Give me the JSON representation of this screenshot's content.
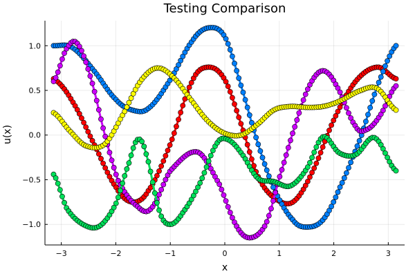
{
  "chart_data": {
    "type": "scatter",
    "title": "Testing Comparison",
    "xlabel": "x",
    "ylabel": "u(x)",
    "xlim": [
      -3.3,
      3.3
    ],
    "ylim": [
      -1.23,
      1.28
    ],
    "xticks": [
      -3,
      -2,
      -1,
      0,
      1,
      2,
      3
    ],
    "yticks": [
      -1.0,
      -0.5,
      0.0,
      0.5,
      1.0
    ],
    "xtick_labels": [
      "−3",
      "−2",
      "−1",
      "0",
      "1",
      "2",
      "3"
    ],
    "ytick_labels": [
      "−1.0",
      "−0.5",
      "0.0",
      "0.5",
      "1.0"
    ],
    "grid": true,
    "legend": "none",
    "x_range": [
      -3.14159,
      3.14159
    ],
    "n_points": 160,
    "series": [
      {
        "color": "#ff0000",
        "marker_edge": "#000000",
        "points": [
          [
            -3.14,
            0.63
          ],
          [
            -2.8,
            0.38
          ],
          [
            -2.4,
            -0.1
          ],
          [
            -2.0,
            -0.58
          ],
          [
            -1.7,
            -0.75
          ],
          [
            -1.4,
            -0.62
          ],
          [
            -1.0,
            -0.1
          ],
          [
            -0.6,
            0.6
          ],
          [
            -0.3,
            0.76
          ],
          [
            0.0,
            0.62
          ],
          [
            0.3,
            0.12
          ],
          [
            0.6,
            -0.45
          ],
          [
            0.9,
            -0.7
          ],
          [
            1.25,
            -0.75
          ],
          [
            1.6,
            -0.42
          ],
          [
            2.0,
            0.17
          ],
          [
            2.4,
            0.6
          ],
          [
            2.8,
            0.76
          ],
          [
            3.14,
            0.63
          ]
        ]
      },
      {
        "color": "#0080ff",
        "marker_edge": "#000000",
        "points": [
          [
            -3.14,
            1.0
          ],
          [
            -2.8,
            0.98
          ],
          [
            -2.4,
            0.72
          ],
          [
            -2.0,
            0.4
          ],
          [
            -1.7,
            0.28
          ],
          [
            -1.4,
            0.3
          ],
          [
            -1.0,
            0.62
          ],
          [
            -0.6,
            1.05
          ],
          [
            -0.3,
            1.2
          ],
          [
            0.0,
            1.1
          ],
          [
            0.3,
            0.55
          ],
          [
            0.6,
            -0.08
          ],
          [
            0.9,
            -0.6
          ],
          [
            1.25,
            -0.95
          ],
          [
            1.5,
            -1.03
          ],
          [
            1.8,
            -0.95
          ],
          [
            2.1,
            -0.6
          ],
          [
            2.5,
            -0.02
          ],
          [
            2.8,
            0.55
          ],
          [
            3.14,
            1.0
          ]
        ]
      },
      {
        "color": "#cc00ff",
        "marker_edge": "#000000",
        "points": [
          [
            -3.14,
            0.6
          ],
          [
            -2.9,
            0.97
          ],
          [
            -2.7,
            1.02
          ],
          [
            -2.45,
            0.62
          ],
          [
            -2.2,
            0.0
          ],
          [
            -1.95,
            -0.52
          ],
          [
            -1.6,
            -0.8
          ],
          [
            -1.35,
            -0.82
          ],
          [
            -1.0,
            -0.4
          ],
          [
            -0.5,
            -0.19
          ],
          [
            -0.1,
            -0.55
          ],
          [
            0.2,
            -1.0
          ],
          [
            0.45,
            -1.15
          ],
          [
            0.75,
            -1.0
          ],
          [
            1.0,
            -0.48
          ],
          [
            1.3,
            0.12
          ],
          [
            1.55,
            0.55
          ],
          [
            1.8,
            0.72
          ],
          [
            2.05,
            0.55
          ],
          [
            2.4,
            0.1
          ],
          [
            2.6,
            0.06
          ],
          [
            2.85,
            0.22
          ],
          [
            3.14,
            0.55
          ]
        ]
      },
      {
        "color": "#ffff00",
        "marker_edge": "#000000",
        "points": [
          [
            -3.14,
            0.25
          ],
          [
            -2.85,
            0.05
          ],
          [
            -2.55,
            -0.12
          ],
          [
            -2.2,
            -0.1
          ],
          [
            -1.85,
            0.25
          ],
          [
            -1.55,
            0.6
          ],
          [
            -1.25,
            0.75
          ],
          [
            -0.95,
            0.65
          ],
          [
            -0.6,
            0.38
          ],
          [
            -0.3,
            0.15
          ],
          [
            0.0,
            0.02
          ],
          [
            0.3,
            0.0
          ],
          [
            0.6,
            0.12
          ],
          [
            0.9,
            0.28
          ],
          [
            1.2,
            0.32
          ],
          [
            1.5,
            0.31
          ],
          [
            1.8,
            0.32
          ],
          [
            2.1,
            0.38
          ],
          [
            2.5,
            0.5
          ],
          [
            2.8,
            0.52
          ],
          [
            3.14,
            0.28
          ]
        ]
      },
      {
        "color": "#00e05a",
        "marker_edge": "#000000",
        "points": [
          [
            -3.14,
            -0.44
          ],
          [
            -2.9,
            -0.82
          ],
          [
            -2.6,
            -1.0
          ],
          [
            -2.3,
            -1.02
          ],
          [
            -2.0,
            -0.77
          ],
          [
            -1.75,
            -0.3
          ],
          [
            -1.6,
            -0.05
          ],
          [
            -1.45,
            -0.2
          ],
          [
            -1.2,
            -0.85
          ],
          [
            -1.0,
            -1.0
          ],
          [
            -0.75,
            -0.85
          ],
          [
            -0.45,
            -0.53
          ],
          [
            -0.15,
            -0.1
          ],
          [
            0.05,
            -0.05
          ],
          [
            0.3,
            -0.2
          ],
          [
            0.6,
            -0.48
          ],
          [
            0.9,
            -0.52
          ],
          [
            1.2,
            -0.57
          ],
          [
            1.5,
            -0.38
          ],
          [
            1.8,
            -0.02
          ],
          [
            2.1,
            -0.2
          ],
          [
            2.4,
            -0.22
          ],
          [
            2.75,
            -0.03
          ],
          [
            3.14,
            -0.4
          ]
        ]
      }
    ]
  }
}
